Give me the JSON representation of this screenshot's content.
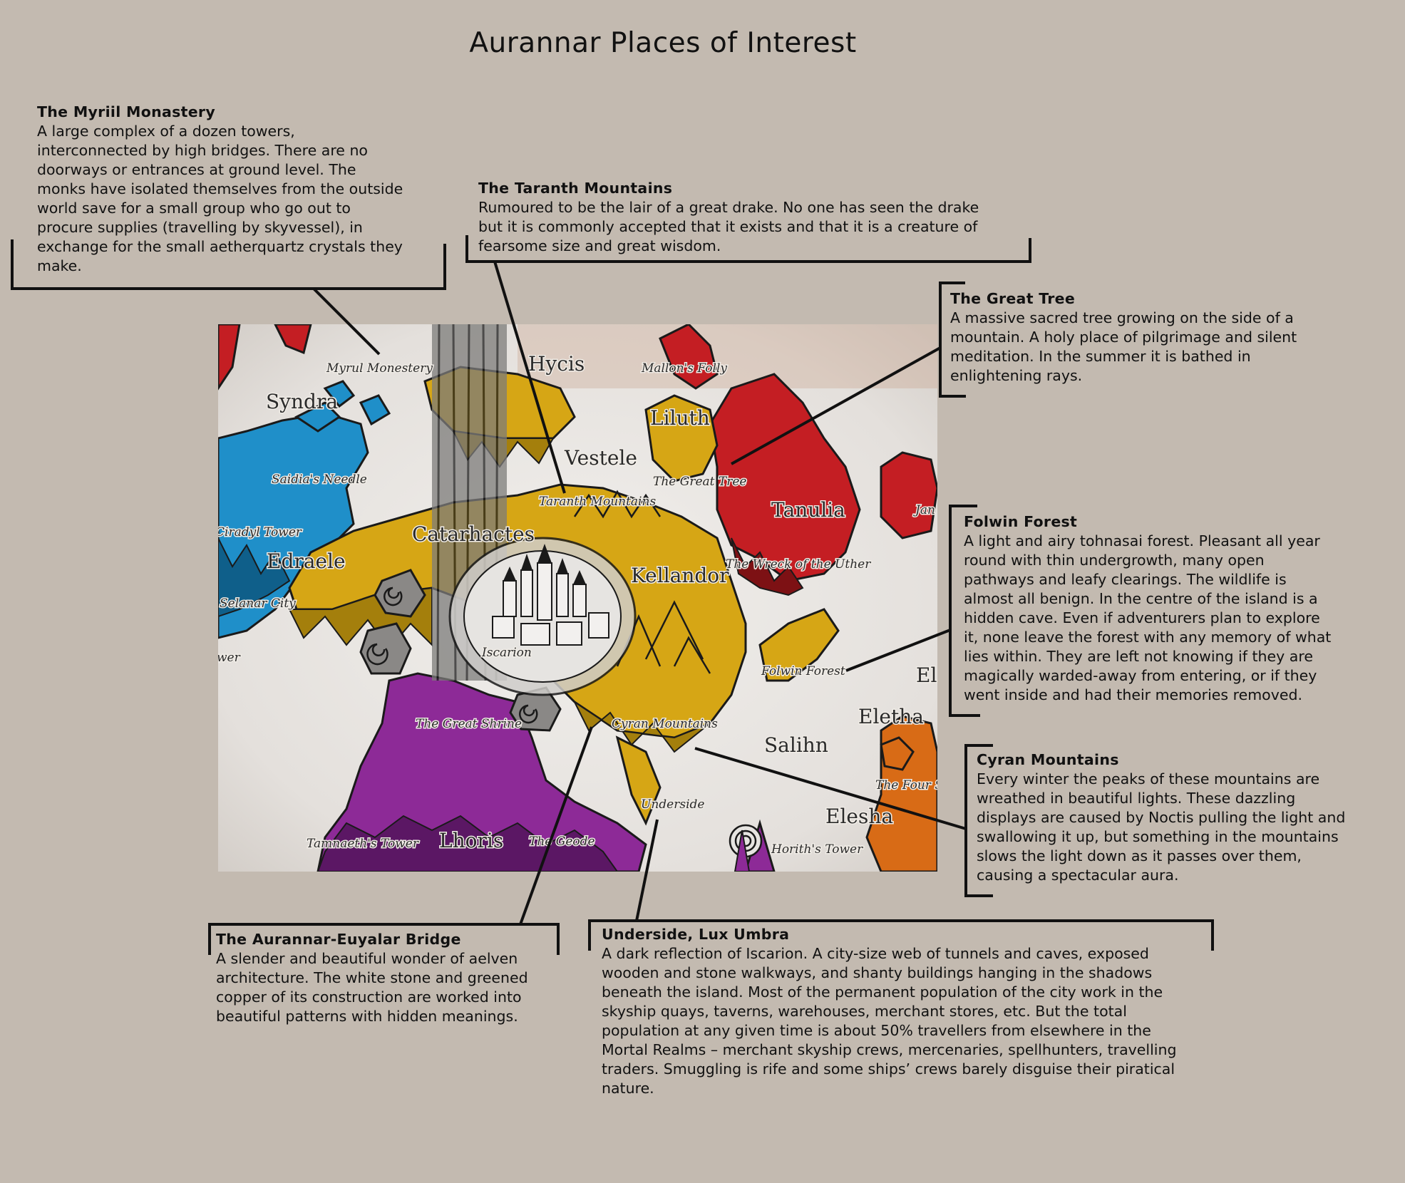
{
  "title": "Aurannar Places of Interest",
  "callouts": {
    "myriil": {
      "title": "The Myriil Monastery",
      "body": "A large complex of a dozen towers,\ninterconnected by high bridges. There are no\ndoorways or entrances at ground level. The\nmonks have isolated themselves from the outside\nworld save for a small group who go out to\nprocure supplies (travelling by skyvessel), in\nexchange for the small aetherquartz crystals they\nmake."
    },
    "taranth": {
      "title": "The Taranth Mountains",
      "body": "Rumoured to be the lair of a great drake. No one has seen the drake\nbut it is commonly accepted that it exists and that it is a creature of\nfearsome size and great wisdom."
    },
    "great_tree": {
      "title": "The Great Tree",
      "body": "A massive sacred tree growing on the side of a\nmountain. A holy place of pilgrimage and silent\nmeditation. In the summer it is bathed in\nenlightening rays."
    },
    "folwin": {
      "title": "Folwin Forest",
      "body": "A light and airy tohnasai forest. Pleasant all year\nround with thin undergrowth, many open\npathways and leafy clearings. The wildlife is\nalmost all benign. In the centre of the island is a\nhidden cave. Even if adventurers plan to explore\nit, none leave the forest with any memory of what\nlies within. They are left not knowing if they are\nmagically warded-away from entering, or if they\nwent inside and had their memories removed."
    },
    "cyran": {
      "title": "Cyran Mountains",
      "body": "Every winter the peaks of these mountains are\nwreathed in beautiful lights. These dazzling\ndisplays are caused by Noctis pulling the light and\nswallowing it up, but something in the mountains\nslows the light down as it passes over them,\ncausing a spectacular aura."
    },
    "bridge": {
      "title": "The Aurannar-Euyalar Bridge",
      "body": "A slender and beautiful wonder of aelven\narchitecture. The white stone and greened\ncopper of its construction are worked into\nbeautiful patterns with hidden meanings."
    },
    "underside": {
      "title": "Underside, Lux Umbra",
      "body": "A dark reflection of Iscarion. A city-size web of tunnels and caves, exposed\nwooden and stone walkways, and shanty buildings hanging in the shadows\nbeneath the island. Most of the permanent population of the city work in the\nskyship quays, taverns, warehouses, merchant stores, etc. But the total\npopulation at any given time is about 50% travellers from elsewhere in the\nMortal Realms – merchant skyship crews, mercenaries, spellhunters, travelling\ntraders. Smuggling is rife and some ships’ crews barely disguise their piratical\nnature."
    }
  },
  "map": {
    "labels": {
      "myrul_monestery": "Myrul Monestery",
      "hycis": "Hycis",
      "mallons_folly": "Mallon's Folly",
      "syndra": "Syndra",
      "liluth": "Liluth",
      "vestele": "Vestele",
      "saidias_needle": "Saidia's Needle",
      "the_great_tree": "The Great Tree",
      "taranth_mountains": "Taranth Mountains",
      "tanulia": "Tanulia",
      "jan": "Jan",
      "iradyl_tower": "Ciradyl Tower",
      "catarhactes": "Catarhactes",
      "edraele": "Edraele",
      "kellandor": "Kellandor",
      "wreck_of_the_uther": "The Wreck of the Uther",
      "selanar_city": "Selanar City",
      "wer": "wer",
      "iscarion": "Iscarion",
      "folwin_forest": "Folwin Forest",
      "el": "El",
      "eletha": "Eletha",
      "the_great_shrine": "The Great Shrine",
      "cyran_mountains": "Cyran Mountains",
      "salihn": "Salihn",
      "the_four_s": "The Four S",
      "underside": "Underside",
      "elesha": "Elesha",
      "tamnaeths_tower": "Tamnaeth's Tower",
      "lhoris": "Lhoris",
      "the_geode": "The Geode",
      "horiths_tower": "Horith's Tower"
    },
    "region_colors": {
      "blue": "#1f8fc9",
      "gold": "#d6a615",
      "red": "#c41e23",
      "purple": "#8d2a97",
      "orange": "#d86b16",
      "grey": "#8a8886"
    }
  }
}
